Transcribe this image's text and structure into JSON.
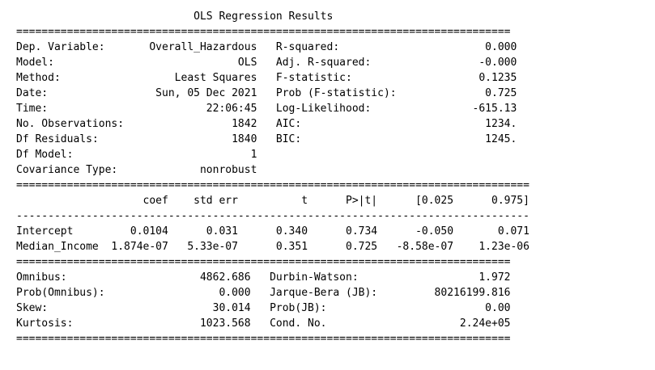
{
  "lines": [
    "                            OLS Regression Results                            ",
    "==============================================================================",
    "Dep. Variable:       Overall_Hazardous   R-squared:                       0.000",
    "Model:                             OLS   Adj. R-squared:                 -0.000",
    "Method:                  Least Squares   F-statistic:                    0.1235",
    "Date:                 Sun, 05 Dec 2021   Prob (F-statistic):              0.725",
    "Time:                         22:06:45   Log-Likelihood:                -615.13",
    "No. Observations:                 1842   AIC:                             1234.",
    "Df Residuals:                     1840   BIC:                             1245.",
    "Df Model:                            1                                         ",
    "Covariance Type:             nonrobust                                         ",
    "=================================================================================",
    "                    coef    std err          t      P>|t|      [0.025      0.975]",
    "---------------------------------------------------------------------------------",
    "Intercept         0.0104      0.031      0.340      0.734      -0.050       0.071",
    "Median_Income  1.874e-07   5.33e-07      0.351      0.725   -8.58e-07    1.23e-06",
    "==============================================================================",
    "Omnibus:                     4862.686   Durbin-Watson:                   1.972",
    "Prob(Omnibus):                  0.000   Jarque-Bera (JB):         80216199.816",
    "Skew:                          30.014   Prob(JB):                         0.00",
    "Kurtosis:                    1023.568   Cond. No.                     2.24e+05",
    "=============================================================================="
  ]
}
